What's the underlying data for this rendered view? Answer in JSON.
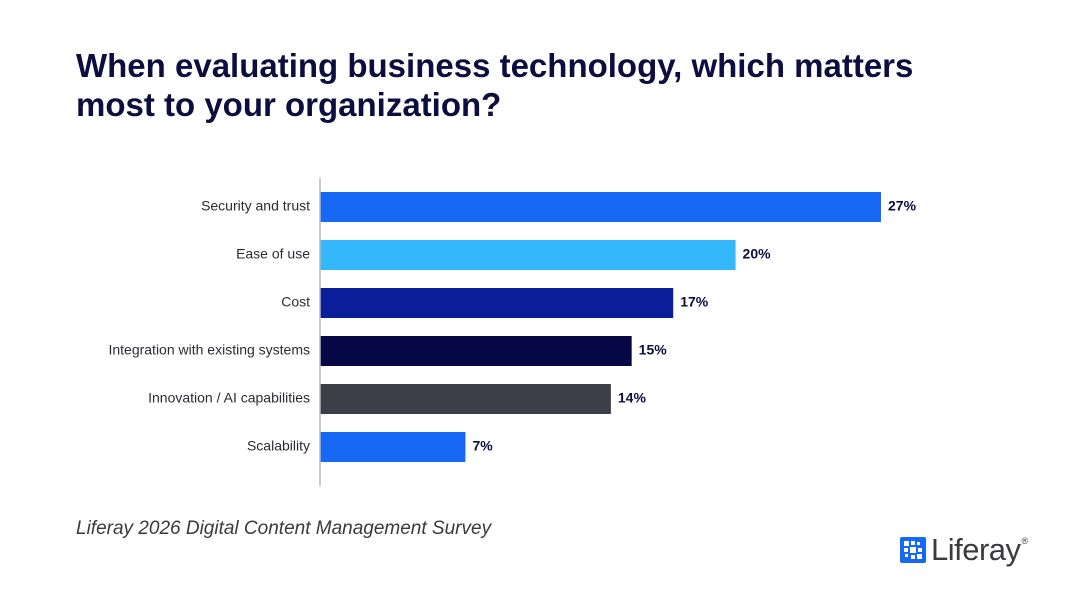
{
  "chart_data": {
    "type": "hbar",
    "title": "When evaluating business technology, which matters most to your organization?",
    "categories": [
      "Security and trust",
      "Ease of use",
      "Cost",
      "Integration with existing systems",
      "Innovation / AI capabilities",
      "Scalability"
    ],
    "values": [
      27,
      20,
      17,
      15,
      14,
      7
    ],
    "value_labels": [
      "27%",
      "20%",
      "17%",
      "15%",
      "14%",
      "7%"
    ],
    "colors": [
      "#1668f5",
      "#35b8fb",
      "#0a1e9a",
      "#050845",
      "#3d3e48",
      "#1668f5"
    ],
    "source": "Liferay 2026 Digital Content Management Survey"
  },
  "logo": {
    "text": "Liferay",
    "trademark": "®"
  }
}
